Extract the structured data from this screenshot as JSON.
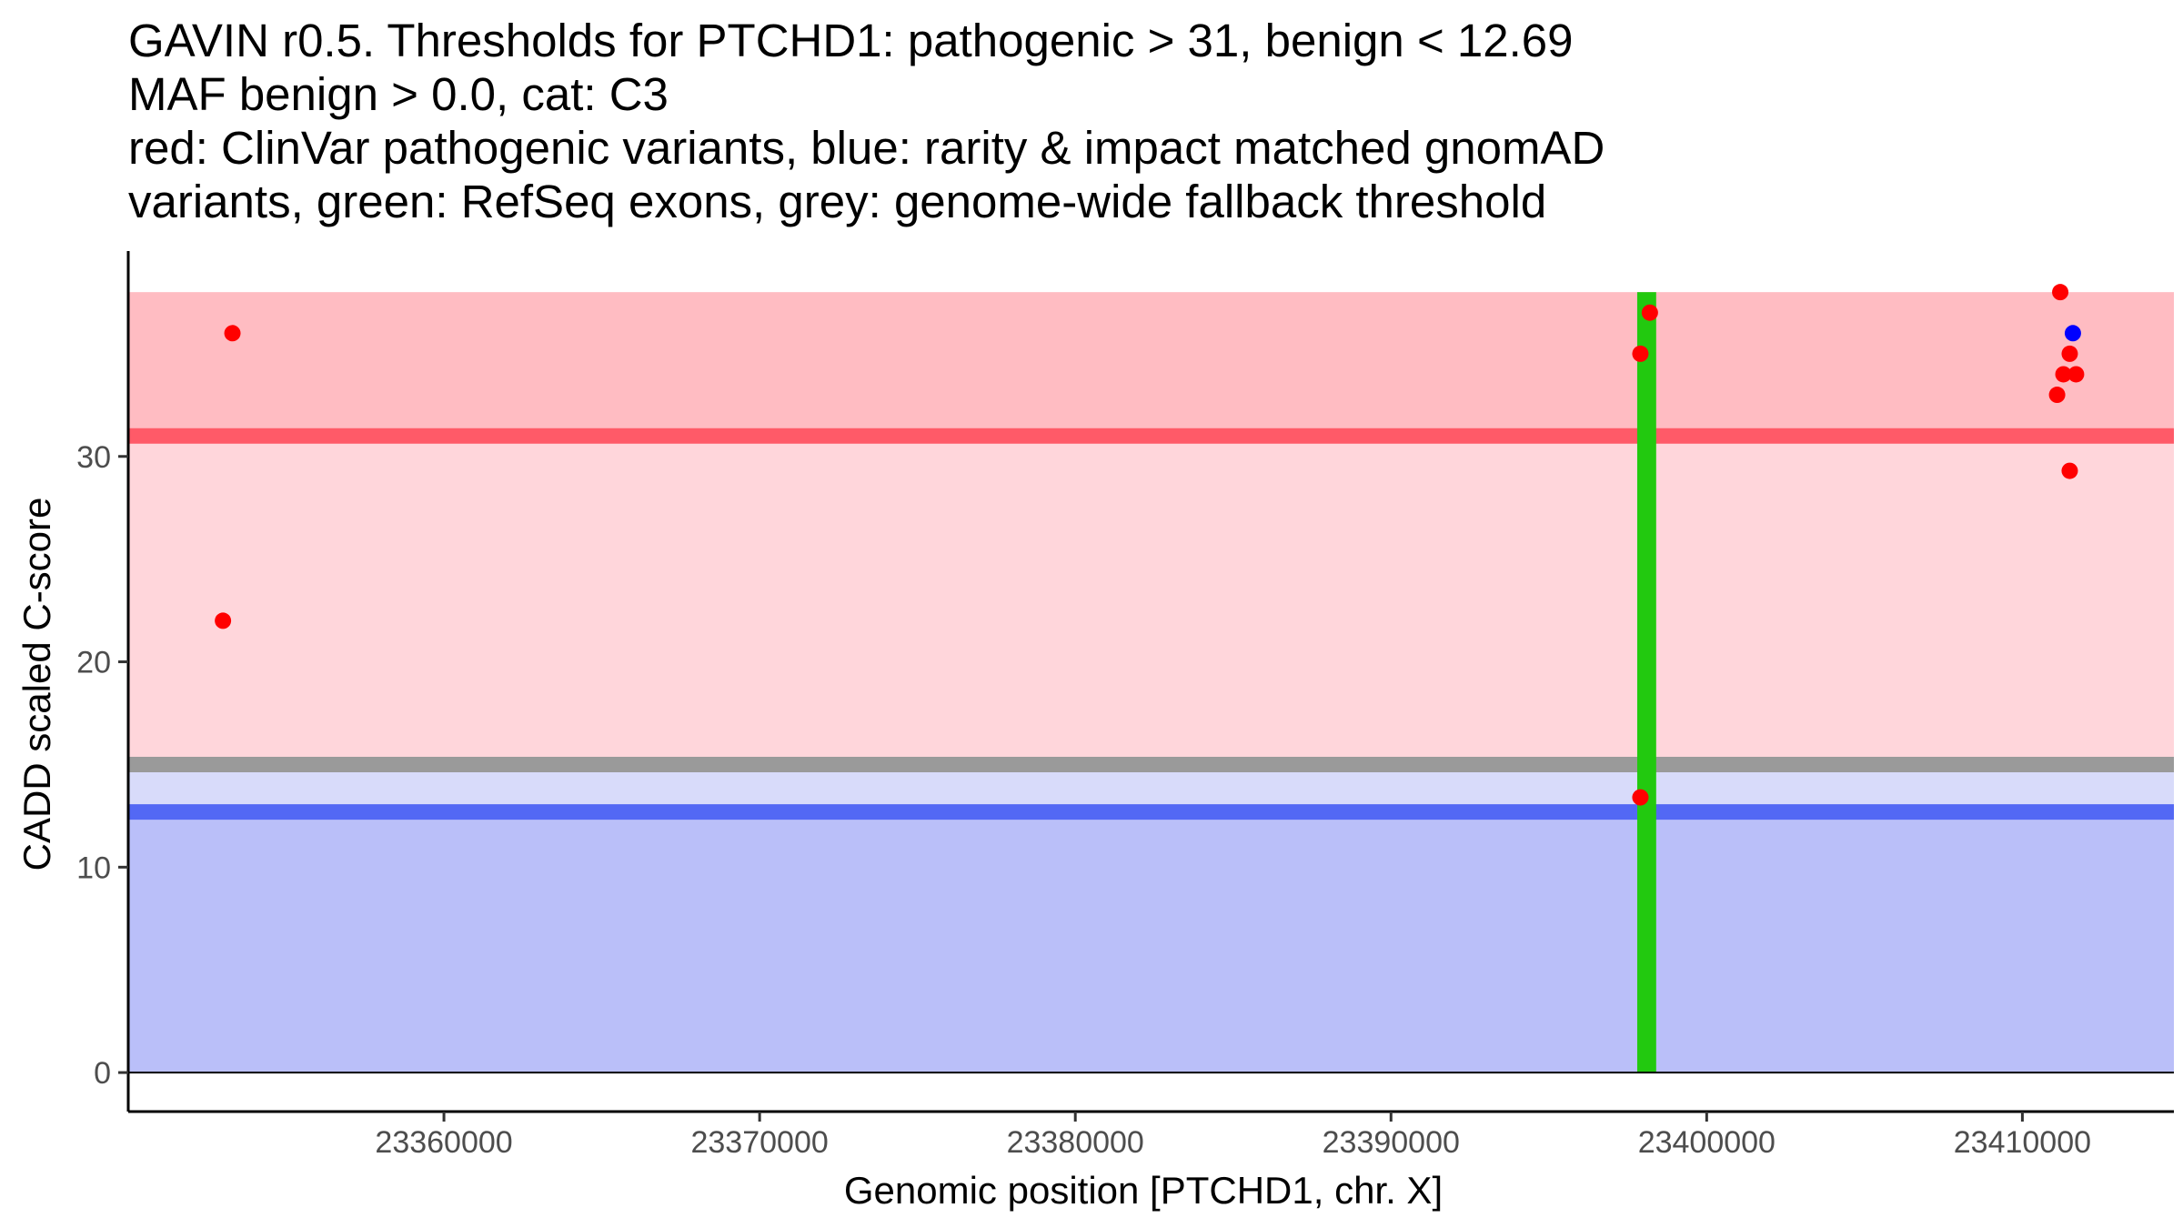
{
  "chart_data": {
    "type": "scatter",
    "title_lines": [
      "GAVIN r0.5. Thresholds for PTCHD1: pathogenic > 31, benign < 12.69",
      "MAF benign > 0.0, cat: C3",
      "red: ClinVar pathogenic variants, blue: rarity & impact matched gnomAD",
      "variants, green: RefSeq exons, grey: genome-wide fallback threshold"
    ],
    "xlabel": "Genomic position [PTCHD1, chr. X]",
    "ylabel": "CADD scaled C-score",
    "xlim": [
      23350000,
      23414800
    ],
    "ylim": [
      -1.9,
      40.0
    ],
    "x_ticks": [
      23360000,
      23370000,
      23380000,
      23390000,
      23400000,
      23410000
    ],
    "x_tick_labels": [
      "23360000",
      "23370000",
      "23380000",
      "23390000",
      "23400000",
      "23410000"
    ],
    "y_ticks": [
      0,
      10,
      20,
      30
    ],
    "y_tick_labels": [
      "0",
      "10",
      "20",
      "30"
    ],
    "region_x_range": [
      23350000,
      23414800
    ],
    "bands": [
      {
        "name": "pathogenic-upper-band",
        "y0": 31,
        "y1": 38,
        "color": "#ffbcc2"
      },
      {
        "name": "pathogenic-band",
        "y0": 15.0,
        "y1": 31,
        "color": "#ffd6db"
      },
      {
        "name": "intermediate-band",
        "y0": 12.69,
        "y1": 15.0,
        "color": "#d8dbfa"
      },
      {
        "name": "benign-band",
        "y0": 0,
        "y1": 12.69,
        "color": "#babff9"
      }
    ],
    "thresholds": [
      {
        "name": "pathogenic-threshold-line",
        "label": "pathogenic > 31",
        "value": 31,
        "color": "#ff5a68"
      },
      {
        "name": "fallback-threshold-line",
        "label": "genome-wide fallback threshold",
        "value": 15.0,
        "color": "#9a9a9a"
      },
      {
        "name": "benign-threshold-line",
        "label": "benign < 12.69",
        "value": 12.69,
        "color": "#5368f4"
      }
    ],
    "exons": [
      {
        "name": "refseq-exon",
        "x0": 23397800,
        "x1": 23398400,
        "y0": 0,
        "y1": 38,
        "color": "#22c90f"
      }
    ],
    "series": [
      {
        "name": "ClinVar pathogenic variants",
        "color": "#ff0000",
        "points": [
          {
            "x": 23353000,
            "y": 22.0
          },
          {
            "x": 23353300,
            "y": 36.0
          },
          {
            "x": 23397900,
            "y": 35.0
          },
          {
            "x": 23398200,
            "y": 37.0
          },
          {
            "x": 23397900,
            "y": 13.4
          },
          {
            "x": 23411100,
            "y": 33.0
          },
          {
            "x": 23411200,
            "y": 38.0
          },
          {
            "x": 23411300,
            "y": 34.0
          },
          {
            "x": 23411500,
            "y": 35.0
          },
          {
            "x": 23411500,
            "y": 29.3
          },
          {
            "x": 23411700,
            "y": 34.0
          }
        ]
      },
      {
        "name": "rarity & impact matched gnomAD variants",
        "color": "#0000ff",
        "points": [
          {
            "x": 23411600,
            "y": 36.0
          }
        ]
      }
    ]
  }
}
